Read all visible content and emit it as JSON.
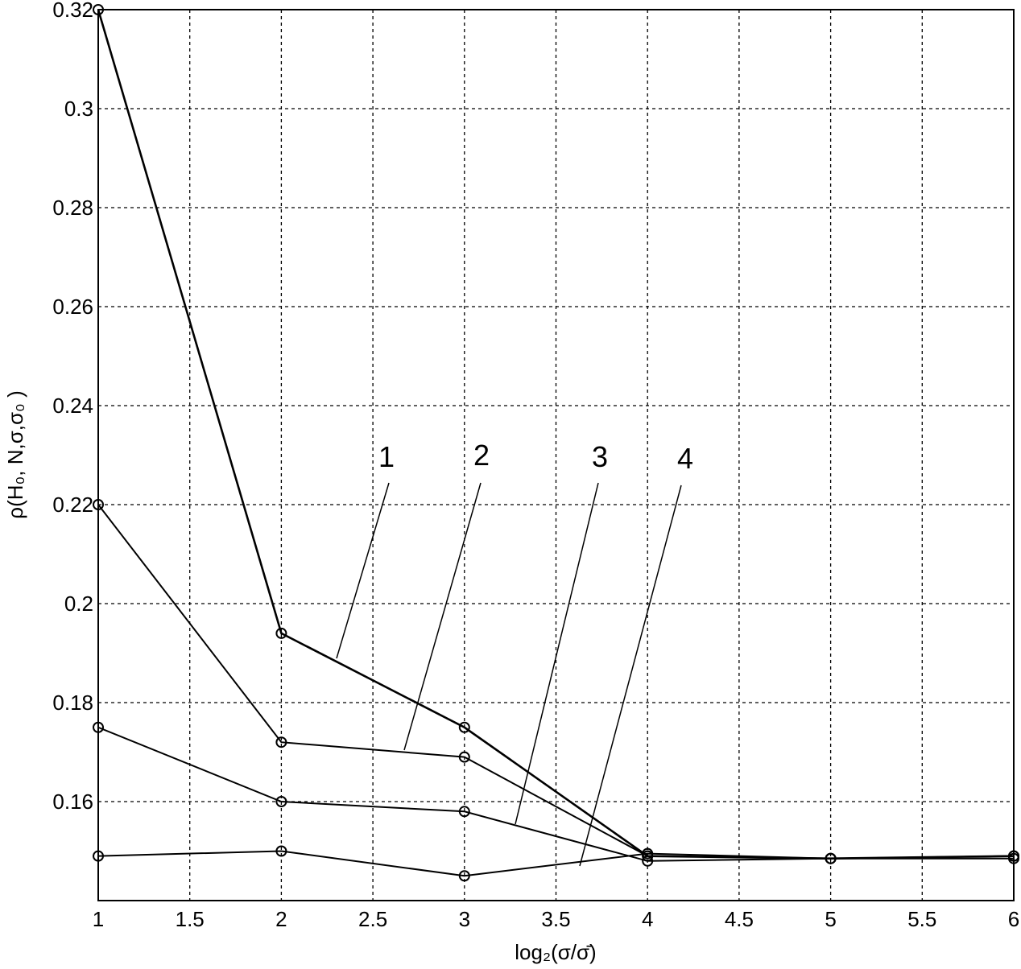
{
  "chart_data": {
    "type": "line",
    "xlabel": "log₂(σ/σ̄)",
    "ylabel": "ρ(H₀, N,σ,σ₀ )",
    "x": [
      1,
      2,
      3,
      4,
      5,
      6
    ],
    "series": [
      {
        "color": "#000000",
        "values": [
          0.32,
          0.194,
          0.175,
          0.149,
          0.1485,
          0.149
        ]
      },
      {
        "color": "#000000",
        "values": [
          0.22,
          0.172,
          0.169,
          0.149,
          0.1485,
          0.149
        ]
      },
      {
        "color": "#000000",
        "values": [
          0.175,
          0.16,
          0.158,
          0.148,
          0.1485,
          0.149
        ]
      },
      {
        "color": "#000000",
        "values": [
          0.149,
          0.15,
          0.145,
          0.1495,
          0.1485,
          0.1485
        ]
      }
    ],
    "annotations": [
      "1",
      "2",
      "3",
      "4"
    ],
    "xlim": [
      1,
      6
    ],
    "xticks": [
      1,
      1.5,
      2,
      2.5,
      3,
      3.5,
      4,
      4.5,
      5,
      5.5,
      6
    ],
    "ylim": [
      0.14,
      0.32
    ],
    "yticks": [
      0.16,
      0.18,
      0.2,
      0.22,
      0.24,
      0.26,
      0.28,
      0.3,
      0.32
    ],
    "grid": true
  }
}
